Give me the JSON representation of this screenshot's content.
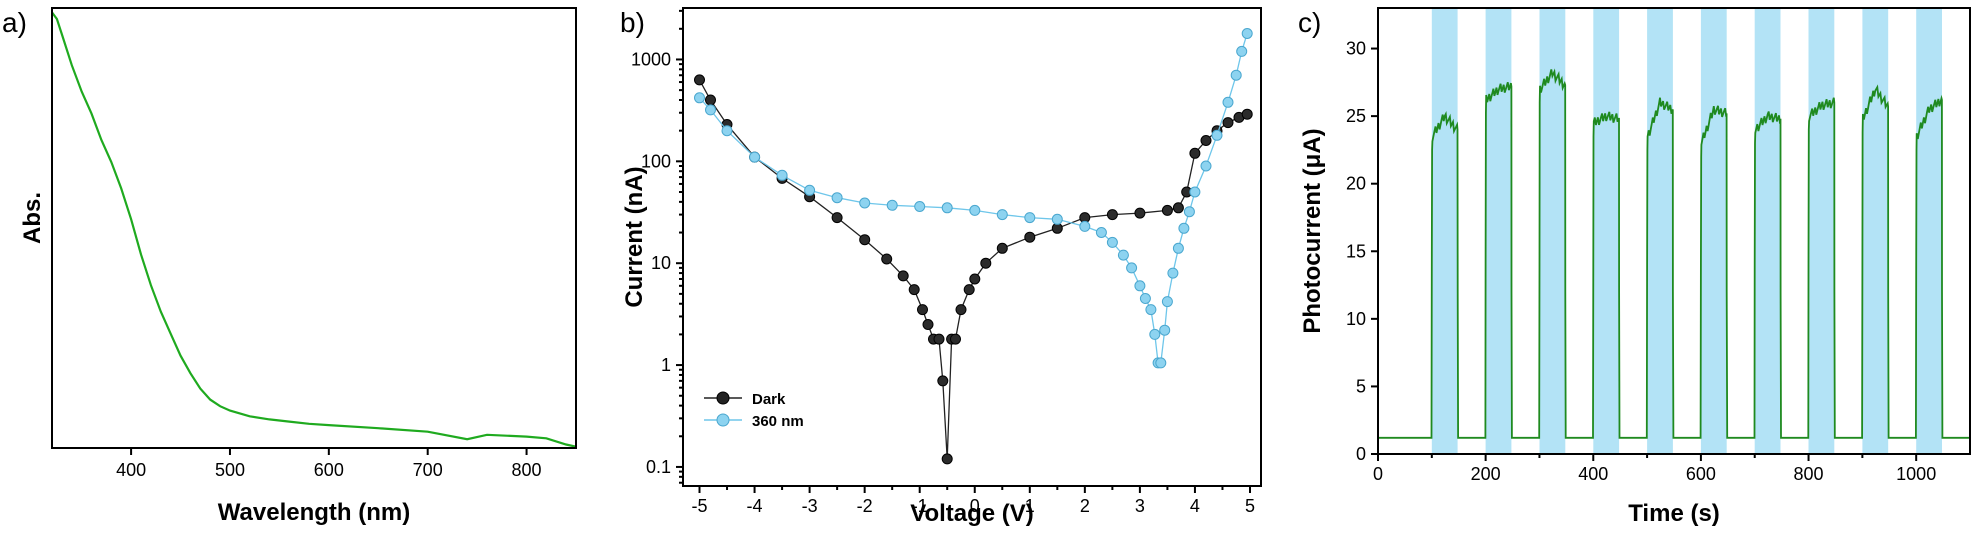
{
  "chart_data": [
    {
      "panel_label": "a)",
      "type": "line",
      "xlabel": "Wavelength (nm)",
      "ylabel": "Abs.",
      "xlim": [
        320,
        850
      ],
      "xticks": [
        "400",
        "500",
        "600",
        "700",
        "800"
      ],
      "yticks": "none",
      "ylim": [
        0,
        1
      ],
      "series": [
        {
          "color": "#1faa1f",
          "x": [
            320,
            325,
            330,
            340,
            350,
            360,
            370,
            380,
            390,
            400,
            410,
            420,
            430,
            440,
            450,
            460,
            470,
            480,
            490,
            500,
            520,
            540,
            560,
            580,
            600,
            650,
            700,
            740,
            760,
            800,
            820,
            840,
            850
          ],
          "y": [
            0.99,
            0.975,
            0.94,
            0.87,
            0.81,
            0.76,
            0.7,
            0.65,
            0.59,
            0.52,
            0.44,
            0.37,
            0.31,
            0.26,
            0.21,
            0.17,
            0.135,
            0.11,
            0.095,
            0.085,
            0.072,
            0.065,
            0.06,
            0.055,
            0.052,
            0.045,
            0.037,
            0.02,
            0.03,
            0.026,
            0.022,
            0.008,
            0.003
          ]
        }
      ]
    },
    {
      "panel_label": "b)",
      "type": "scatter",
      "xlabel": "Voltage (V)",
      "ylabel": "Current (nA)",
      "xlim": [
        -5.3,
        5.2
      ],
      "ylim": [
        0.065,
        3200
      ],
      "yscale": "log",
      "xticks": [
        "-5",
        "-4",
        "-3",
        "-2",
        "-1",
        "0",
        "1",
        "2",
        "3",
        "4",
        "5"
      ],
      "yticks": [
        "0.1",
        "1",
        "10",
        "100",
        "1000"
      ],
      "legend_position": "bottom-left",
      "series": [
        {
          "name": "Dark",
          "color": "#222222",
          "x": [
            -5.0,
            -4.8,
            -4.5,
            -4.0,
            -3.5,
            -3.0,
            -2.5,
            -2.0,
            -1.6,
            -1.3,
            -1.1,
            -0.95,
            -0.85,
            -0.75,
            -0.65,
            -0.58,
            -0.5,
            -0.42,
            -0.35,
            -0.25,
            -0.1,
            0.0,
            0.2,
            0.5,
            1.0,
            1.5,
            2.0,
            2.5,
            3.0,
            3.5,
            3.7,
            3.85,
            4.0,
            4.2,
            4.4,
            4.6,
            4.8,
            4.95
          ],
          "y": [
            630,
            400,
            230,
            110,
            68,
            45,
            28,
            17,
            11,
            7.5,
            5.5,
            3.5,
            2.5,
            1.8,
            1.8,
            0.7,
            0.12,
            1.8,
            1.8,
            3.5,
            5.5,
            7.0,
            10,
            14,
            18,
            22,
            28,
            30,
            31,
            33,
            35,
            50,
            120,
            160,
            200,
            240,
            270,
            290
          ]
        },
        {
          "name": "360 nm",
          "color": "#6ec6ea",
          "x": [
            -5.0,
            -4.8,
            -4.5,
            -4.0,
            -3.5,
            -3.0,
            -2.5,
            -2.0,
            -1.5,
            -1.0,
            -0.5,
            0.0,
            0.5,
            1.0,
            1.5,
            2.0,
            2.3,
            2.5,
            2.7,
            2.85,
            3.0,
            3.1,
            3.2,
            3.27,
            3.33,
            3.38,
            3.45,
            3.5,
            3.6,
            3.7,
            3.8,
            3.9,
            4.0,
            4.2,
            4.4,
            4.6,
            4.75,
            4.85,
            4.95
          ],
          "y": [
            420,
            320,
            200,
            110,
            73,
            52,
            44,
            39,
            37,
            36,
            35,
            33,
            30,
            28,
            27,
            23,
            20,
            16,
            12,
            9,
            6,
            4.5,
            3.5,
            2.0,
            1.05,
            1.05,
            2.2,
            4.2,
            8,
            14,
            22,
            32,
            50,
            90,
            180,
            380,
            700,
            1200,
            1800
          ]
        }
      ]
    },
    {
      "panel_label": "c)",
      "type": "line",
      "xlabel": "Time (s)",
      "ylabel": "Photocurrent (μA)",
      "xlim": [
        0,
        1100
      ],
      "ylim": [
        0,
        33
      ],
      "xticks": [
        "0",
        "200",
        "400",
        "600",
        "800",
        "1000"
      ],
      "yticks": [
        "0",
        "5",
        "10",
        "15",
        "20",
        "25",
        "30"
      ],
      "illumination_color": "#b3e3f6",
      "illumination_windows": [
        [
          100,
          148
        ],
        [
          200,
          248
        ],
        [
          300,
          348
        ],
        [
          400,
          448
        ],
        [
          500,
          548
        ],
        [
          600,
          648
        ],
        [
          700,
          748
        ],
        [
          800,
          848
        ],
        [
          900,
          948
        ],
        [
          1000,
          1048
        ]
      ],
      "on_currents": [
        [
          23.5,
          25,
          24
        ],
        [
          26.2,
          27,
          27.2
        ],
        [
          27,
          28.2,
          27.3
        ],
        [
          24.5,
          25,
          24.8
        ],
        [
          23.5,
          26,
          25.5
        ],
        [
          23,
          25.5,
          25.2
        ],
        [
          24,
          25,
          24.8
        ],
        [
          25,
          25.8,
          26
        ],
        [
          24.8,
          27,
          25.7
        ],
        [
          23.5,
          25.5,
          26.2
        ]
      ],
      "dark_current": 1.2,
      "series": [
        {
          "color": "#1f8a1f"
        }
      ]
    }
  ]
}
